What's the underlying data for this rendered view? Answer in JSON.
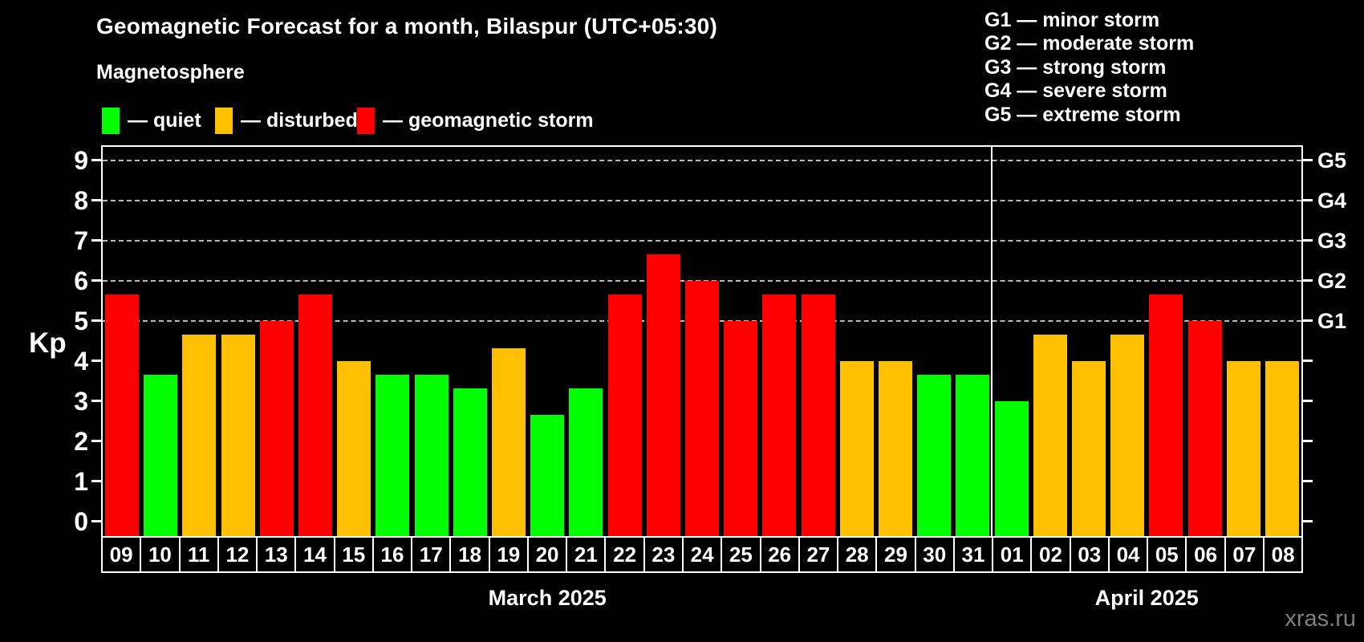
{
  "header": {
    "title": "Geomagnetic Forecast for a month, Bilaspur (UTC+05:30)",
    "subtitle": "Magnetosphere"
  },
  "legend": {
    "items": [
      {
        "key": "quiet",
        "label": "— quiet",
        "color": "#00ff00"
      },
      {
        "key": "disturbed",
        "label": "— disturbed",
        "color": "#ffc000"
      },
      {
        "key": "storm",
        "label": "— geomagnetic storm",
        "color": "#ff0000"
      }
    ]
  },
  "storm_scale_legend": [
    "G1 — minor storm",
    "G2 — moderate storm",
    "G3 — strong storm",
    "G4 — severe storm",
    "G5 — extreme storm"
  ],
  "watermark": "xras.ru",
  "chart_data": {
    "type": "bar",
    "title": "Geomagnetic Forecast for a month, Bilaspur (UTC+05:30)",
    "subtitle": "Magnetosphere",
    "ylabel": "Kp",
    "xlabel": "",
    "ylim": [
      -0.4,
      9.4
    ],
    "yticks": [
      0,
      1,
      2,
      3,
      4,
      5,
      6,
      7,
      8,
      9
    ],
    "gridlines_at": [
      5,
      6,
      7,
      8,
      9
    ],
    "grid": "dashed horizontal at storm levels only",
    "legend_position": "top",
    "right_axis": [
      {
        "kp": 5,
        "label": "G1"
      },
      {
        "kp": 6,
        "label": "G2"
      },
      {
        "kp": 7,
        "label": "G3"
      },
      {
        "kp": 8,
        "label": "G4"
      },
      {
        "kp": 9,
        "label": "G5"
      }
    ],
    "colors": {
      "quiet": "#00ff00",
      "disturbed": "#ffc000",
      "storm": "#ff0000"
    },
    "months": [
      {
        "label": "March 2025",
        "num_days": 23
      },
      {
        "label": "April 2025",
        "num_days": 8
      }
    ],
    "days": [
      {
        "date": "09",
        "kp": 5.67,
        "level": "storm"
      },
      {
        "date": "10",
        "kp": 3.67,
        "level": "quiet"
      },
      {
        "date": "11",
        "kp": 4.67,
        "level": "disturbed"
      },
      {
        "date": "12",
        "kp": 4.67,
        "level": "disturbed"
      },
      {
        "date": "13",
        "kp": 5.0,
        "level": "storm"
      },
      {
        "date": "14",
        "kp": 5.67,
        "level": "storm"
      },
      {
        "date": "15",
        "kp": 4.0,
        "level": "disturbed"
      },
      {
        "date": "16",
        "kp": 3.67,
        "level": "quiet"
      },
      {
        "date": "17",
        "kp": 3.67,
        "level": "quiet"
      },
      {
        "date": "18",
        "kp": 3.33,
        "level": "quiet"
      },
      {
        "date": "19",
        "kp": 4.33,
        "level": "disturbed"
      },
      {
        "date": "20",
        "kp": 2.67,
        "level": "quiet"
      },
      {
        "date": "21",
        "kp": 3.33,
        "level": "quiet"
      },
      {
        "date": "22",
        "kp": 5.67,
        "level": "storm"
      },
      {
        "date": "23",
        "kp": 6.67,
        "level": "storm"
      },
      {
        "date": "24",
        "kp": 6.0,
        "level": "storm"
      },
      {
        "date": "25",
        "kp": 5.0,
        "level": "storm"
      },
      {
        "date": "26",
        "kp": 5.67,
        "level": "storm"
      },
      {
        "date": "27",
        "kp": 5.67,
        "level": "storm"
      },
      {
        "date": "28",
        "kp": 4.0,
        "level": "disturbed"
      },
      {
        "date": "29",
        "kp": 4.0,
        "level": "disturbed"
      },
      {
        "date": "30",
        "kp": 3.67,
        "level": "quiet"
      },
      {
        "date": "31",
        "kp": 3.67,
        "level": "quiet"
      },
      {
        "date": "01",
        "kp": 3.0,
        "level": "quiet"
      },
      {
        "date": "02",
        "kp": 4.67,
        "level": "disturbed"
      },
      {
        "date": "03",
        "kp": 4.0,
        "level": "disturbed"
      },
      {
        "date": "04",
        "kp": 4.67,
        "level": "disturbed"
      },
      {
        "date": "05",
        "kp": 5.67,
        "level": "storm"
      },
      {
        "date": "06",
        "kp": 5.0,
        "level": "storm"
      },
      {
        "date": "07",
        "kp": 4.0,
        "level": "disturbed"
      },
      {
        "date": "08",
        "kp": 4.0,
        "level": "disturbed"
      }
    ]
  }
}
